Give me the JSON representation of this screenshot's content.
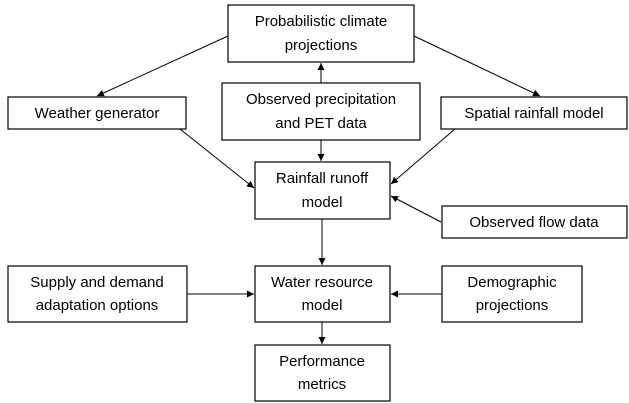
{
  "nodes": [
    {
      "label": [
        "Probabilistic climate",
        "projections"
      ]
    },
    {
      "label": [
        "Weather generator"
      ]
    },
    {
      "label": [
        "Observed precipitation",
        "and PET data"
      ]
    },
    {
      "label": [
        "Spatial rainfall model"
      ]
    },
    {
      "label": [
        "Rainfall runoff",
        "model"
      ]
    },
    {
      "label": [
        "Observed flow data"
      ]
    },
    {
      "label": [
        "Supply and demand",
        "adaptation options"
      ]
    },
    {
      "label": [
        "Water resource",
        "model"
      ]
    },
    {
      "label": [
        "Demographic",
        "projections"
      ]
    },
    {
      "label": [
        "Performance",
        "metrics"
      ]
    }
  ]
}
